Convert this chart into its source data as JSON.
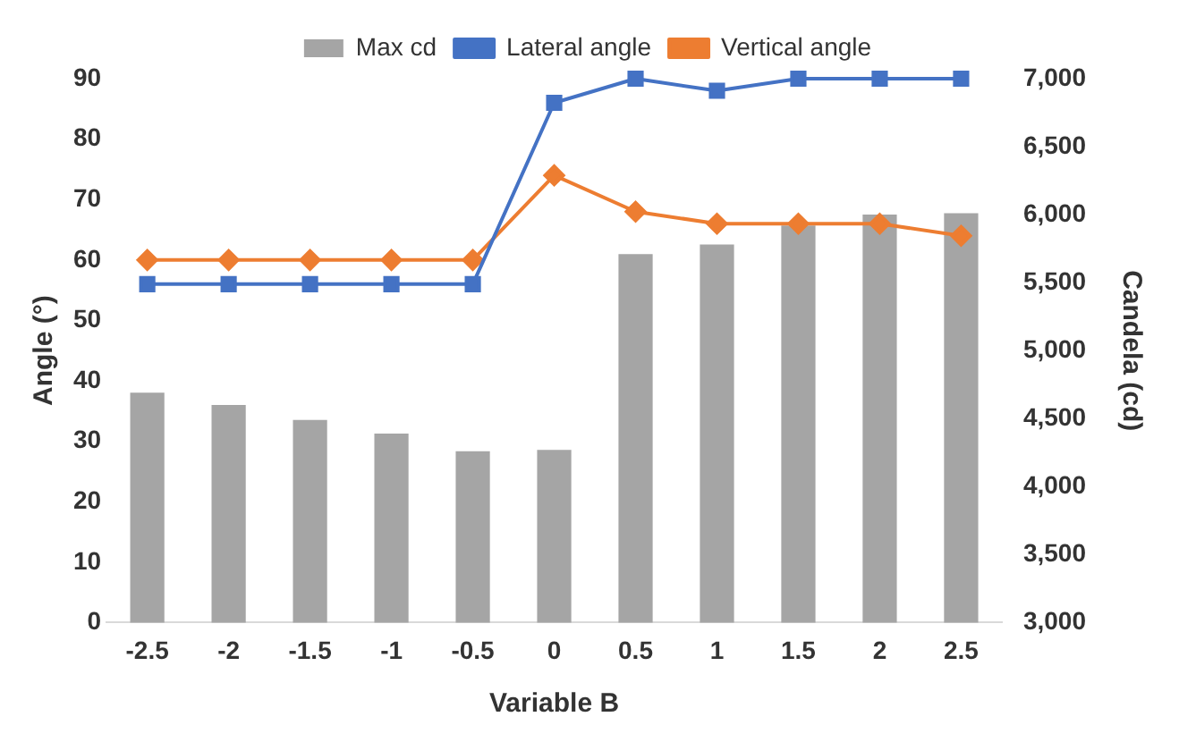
{
  "chart_data": {
    "type": "line",
    "xlabel": "Variable B",
    "ylabel": "Angle (°)",
    "y2label": "Candela (cd)",
    "categories": [
      "-2.5",
      "-2",
      "-1.5",
      "-1",
      "-0.5",
      "0",
      "0.5",
      "1",
      "1.5",
      "2",
      "2.5"
    ],
    "series": [
      {
        "name": "Max cd",
        "type": "bar",
        "axis": "y2",
        "color": "#a5a5a5",
        "values": [
          4690,
          4600,
          4490,
          4390,
          4260,
          4270,
          5710,
          5780,
          5920,
          6000,
          6010
        ]
      },
      {
        "name": "Lateral angle",
        "color": "#4472c4",
        "marker": "square",
        "values": [
          56,
          56,
          56,
          56,
          56,
          86,
          90,
          88,
          90,
          90,
          90
        ]
      },
      {
        "name": "Vertical angle",
        "color": "#ed7d31",
        "marker": "diamond",
        "values": [
          60,
          60,
          60,
          60,
          60,
          74,
          68,
          66,
          66,
          66,
          64
        ]
      }
    ],
    "ylim": [
      0,
      90
    ],
    "yticks": [
      0,
      10,
      20,
      30,
      40,
      50,
      60,
      70,
      80,
      90
    ],
    "y2lim": [
      3000,
      7000
    ],
    "y2ticks": [
      {
        "value": 3000,
        "label": "3,000"
      },
      {
        "value": 3500,
        "label": "3,500"
      },
      {
        "value": 4000,
        "label": "4,000"
      },
      {
        "value": 4500,
        "label": "4,500"
      },
      {
        "value": 5000,
        "label": "5,000"
      },
      {
        "value": 5500,
        "label": "5,500"
      },
      {
        "value": 6000,
        "label": "6,000"
      },
      {
        "value": 6500,
        "label": "6,500"
      },
      {
        "value": 7000,
        "label": "7,000"
      }
    ],
    "legend": "top",
    "grid": false
  }
}
